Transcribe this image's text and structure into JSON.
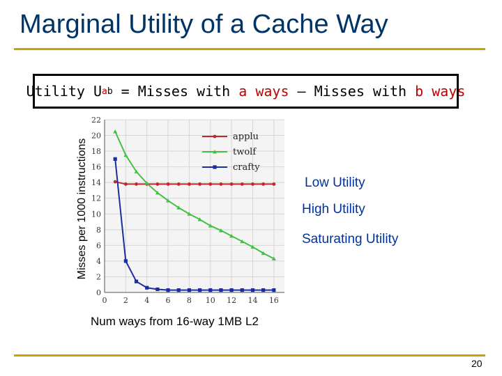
{
  "slide": {
    "title": "Marginal Utility of a Cache Way",
    "page_number": "20"
  },
  "formula": {
    "prefix": "Utility U",
    "sub": "a",
    "sup": "b",
    "eq": " = Misses with ",
    "a_text": "a ways",
    "dash": " – Misses with ",
    "b_text": "b ways"
  },
  "annotations": {
    "low": "Low Utility",
    "high": "High Utility",
    "saturating": "Saturating Utility"
  },
  "colors": {
    "title": "#003366",
    "rule": "#c9a400",
    "annotation": "#003399",
    "applu": "#c0282d",
    "twolf": "#44c044",
    "crafty": "#1a2ea0"
  },
  "chart_data": {
    "type": "line",
    "xlabel": "Num ways from 16-way 1MB L2",
    "ylabel": "Misses per 1000 instructions",
    "xlim": [
      0,
      17
    ],
    "ylim": [
      0,
      22
    ],
    "xticks": [
      0,
      2,
      4,
      6,
      8,
      10,
      12,
      14,
      16
    ],
    "yticks": [
      0,
      2,
      4,
      6,
      8,
      10,
      12,
      14,
      16,
      18,
      20,
      22
    ],
    "grid": true,
    "legend": "top-right",
    "series": [
      {
        "name": "applu",
        "color": "#c0282d",
        "x": [
          1,
          2,
          3,
          4,
          5,
          6,
          7,
          8,
          9,
          10,
          11,
          12,
          13,
          14,
          15,
          16
        ],
        "y": [
          14.1,
          13.8,
          13.8,
          13.8,
          13.8,
          13.8,
          13.8,
          13.8,
          13.8,
          13.8,
          13.8,
          13.8,
          13.8,
          13.8,
          13.8,
          13.8
        ]
      },
      {
        "name": "twolf",
        "color": "#44c044",
        "x": [
          1,
          2,
          3,
          4,
          5,
          6,
          7,
          8,
          9,
          10,
          11,
          12,
          13,
          14,
          15,
          16
        ],
        "y": [
          20.5,
          17.5,
          15.4,
          13.9,
          12.7,
          11.7,
          10.8,
          10.0,
          9.3,
          8.5,
          7.9,
          7.2,
          6.5,
          5.8,
          5.0,
          4.3
        ]
      },
      {
        "name": "crafty",
        "color": "#1a2ea0",
        "x": [
          1,
          2,
          3,
          4,
          5,
          6,
          7,
          8,
          9,
          10,
          11,
          12,
          13,
          14,
          15,
          16
        ],
        "y": [
          17.0,
          4.0,
          1.4,
          0.6,
          0.4,
          0.3,
          0.3,
          0.3,
          0.3,
          0.3,
          0.3,
          0.3,
          0.3,
          0.3,
          0.3,
          0.3
        ]
      }
    ]
  }
}
